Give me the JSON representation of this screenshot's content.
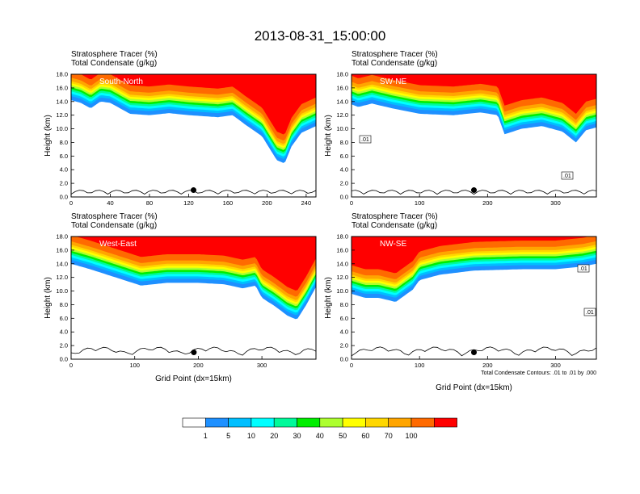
{
  "title": "2013-08-31_15:00:00",
  "footnote": "Total Condensate Contours: .01 to .01 by .000",
  "colors": {
    "levels": [
      "#ffffff",
      "#1e90ff",
      "#00bfff",
      "#00ffff",
      "#00fa9a",
      "#00ee00",
      "#adff2f",
      "#ffff00",
      "#ffd700",
      "#ffa500",
      "#ff6a00",
      "#ff0000"
    ],
    "contour": "#000000",
    "marker": "#000000"
  },
  "chart_data": [
    {
      "type": "heatmap",
      "id": "p1",
      "label": "South-North",
      "subtitle_line1": "Stratosphere Tracer",
      "subtitle_unit1": "(%)",
      "subtitle_line2": "Total Condensate",
      "subtitle_unit2": "(g/kg)",
      "ylabel": "Height (km)",
      "xlabel": "",
      "xlim": [
        0,
        250
      ],
      "ylim": [
        0,
        18
      ],
      "xticks": [
        0,
        40,
        80,
        120,
        160,
        200,
        240
      ],
      "yticks": [
        "0.0",
        "2.0",
        "4.0",
        "6.0",
        "8.0",
        "10.0",
        "12.0",
        "14.0",
        "16.0",
        "18.0"
      ],
      "marker_x": 125,
      "tropopause": [
        [
          0,
          14.8
        ],
        [
          10,
          14.4
        ],
        [
          20,
          13.6
        ],
        [
          30,
          14.6
        ],
        [
          40,
          14.4
        ],
        [
          60,
          12.8
        ],
        [
          80,
          12.6
        ],
        [
          100,
          12.9
        ],
        [
          120,
          12.6
        ],
        [
          150,
          12.3
        ],
        [
          165,
          12.6
        ],
        [
          178,
          11.2
        ],
        [
          195,
          9.5
        ],
        [
          210,
          6.0
        ],
        [
          218,
          5.5
        ],
        [
          225,
          8.0
        ],
        [
          235,
          10.0
        ],
        [
          250,
          11.0
        ]
      ],
      "contour_labels": []
    },
    {
      "type": "heatmap",
      "id": "p2",
      "label": "SW-NE",
      "subtitle_line1": "Stratosphere Tracer",
      "subtitle_unit1": "(%)",
      "subtitle_line2": "Total Condensate",
      "subtitle_unit2": "(g/kg)",
      "ylabel": "Height (km)",
      "xlabel": "",
      "xlim": [
        0,
        360
      ],
      "ylim": [
        0,
        18
      ],
      "xticks": [
        0,
        100,
        200,
        300
      ],
      "yticks": [
        "0.0",
        "2.0",
        "4.0",
        "6.0",
        "8.0",
        "10.0",
        "12.0",
        "14.0",
        "16.0",
        "18.0"
      ],
      "marker_x": 180,
      "tropopause": [
        [
          0,
          14.2
        ],
        [
          10,
          13.8
        ],
        [
          30,
          14.3
        ],
        [
          60,
          13.6
        ],
        [
          100,
          12.8
        ],
        [
          150,
          12.6
        ],
        [
          190,
          13.0
        ],
        [
          215,
          12.6
        ],
        [
          225,
          9.8
        ],
        [
          250,
          10.6
        ],
        [
          280,
          11.0
        ],
        [
          310,
          10.2
        ],
        [
          330,
          8.6
        ],
        [
          345,
          10.4
        ],
        [
          360,
          10.8
        ]
      ],
      "contour_labels": [
        ".01",
        ".01"
      ]
    },
    {
      "type": "heatmap",
      "id": "p3",
      "label": "West-East",
      "subtitle_line1": "Stratosphere Tracer",
      "subtitle_unit1": "(%)",
      "subtitle_line2": "Total Condensate",
      "subtitle_unit2": "(g/kg)",
      "ylabel": "Height (km)",
      "xlabel": "Grid Point (dx=15km)",
      "xlim": [
        0,
        385
      ],
      "ylim": [
        0,
        18
      ],
      "xticks": [
        0,
        100,
        200,
        300
      ],
      "yticks": [
        "0.0",
        "2.0",
        "4.0",
        "6.0",
        "8.0",
        "10.0",
        "12.0",
        "14.0",
        "16.0",
        "18.0"
      ],
      "marker_x": 193,
      "tropopause": [
        [
          0,
          14.6
        ],
        [
          30,
          13.8
        ],
        [
          70,
          12.6
        ],
        [
          110,
          11.4
        ],
        [
          150,
          11.8
        ],
        [
          200,
          11.8
        ],
        [
          240,
          11.6
        ],
        [
          270,
          11.0
        ],
        [
          290,
          11.4
        ],
        [
          300,
          9.6
        ],
        [
          320,
          8.4
        ],
        [
          340,
          7.0
        ],
        [
          355,
          6.4
        ],
        [
          370,
          8.6
        ],
        [
          385,
          11.2
        ]
      ],
      "contour_labels": []
    },
    {
      "type": "heatmap",
      "id": "p4",
      "label": "NW-SE",
      "subtitle_line1": "Stratosphere Tracer",
      "subtitle_unit1": "(%)",
      "subtitle_line2": "Total Condensate",
      "subtitle_unit2": "(g/kg)",
      "ylabel": "Height (km)",
      "xlabel": "Grid Point (dx=15km)",
      "xlim": [
        0,
        360
      ],
      "ylim": [
        0,
        18
      ],
      "xticks": [
        0,
        100,
        200,
        300
      ],
      "yticks": [
        "0.0",
        "2.0",
        "4.0",
        "6.0",
        "8.0",
        "10.0",
        "12.0",
        "14.0",
        "16.0",
        "18.0"
      ],
      "marker_x": 180,
      "tropopause": [
        [
          0,
          10.2
        ],
        [
          20,
          9.6
        ],
        [
          40,
          9.6
        ],
        [
          65,
          9.0
        ],
        [
          90,
          10.8
        ],
        [
          100,
          12.2
        ],
        [
          130,
          13.0
        ],
        [
          180,
          13.6
        ],
        [
          250,
          13.8
        ],
        [
          300,
          13.8
        ],
        [
          340,
          14.2
        ],
        [
          360,
          14.6
        ]
      ],
      "contour_labels": [
        ".01",
        ".01"
      ]
    }
  ],
  "colorbar": {
    "labels": [
      "1",
      "5",
      "10",
      "20",
      "30",
      "40",
      "50",
      "60",
      "70",
      "100"
    ]
  }
}
